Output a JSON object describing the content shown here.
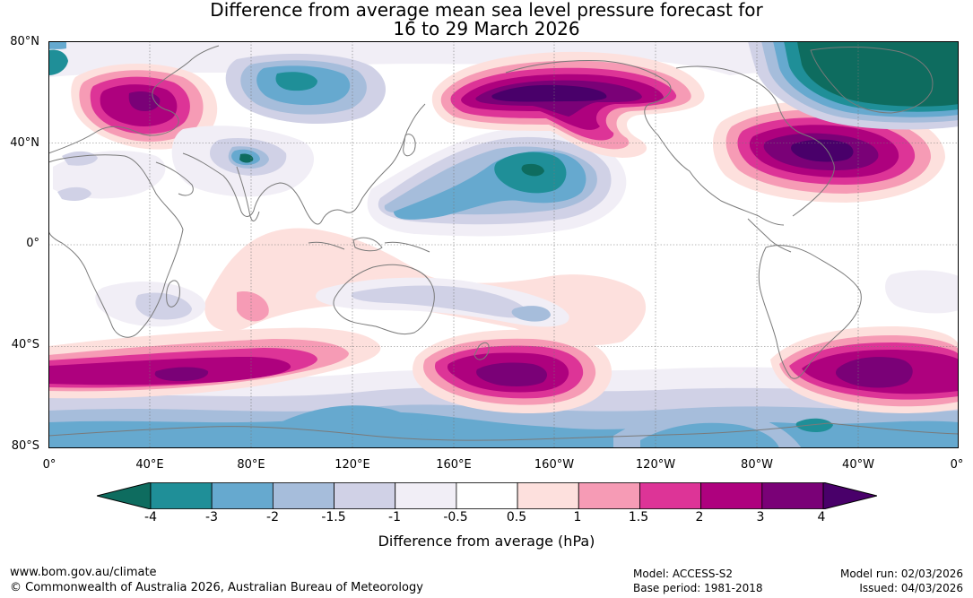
{
  "title_line1": "Difference from average mean sea level pressure forecast for",
  "title_line2": "16 to 29 March 2026",
  "lat_labels": [
    "80°N",
    "40°N",
    "0°",
    "40°S",
    "80°S"
  ],
  "lon_labels": [
    "0°",
    "40°E",
    "80°E",
    "120°E",
    "160°E",
    "160°W",
    "120°W",
    "80°W",
    "40°W",
    "0°"
  ],
  "colorbar": {
    "title": "Difference from average (hPa)",
    "tick_labels": [
      "-4",
      "-3",
      "-2",
      "-1.5",
      "-1",
      "-0.5",
      "0.5",
      "1",
      "1.5",
      "2",
      "3",
      "4"
    ],
    "colors": [
      "#0e6c5f",
      "#1f8f98",
      "#66a9cf",
      "#a6bddb",
      "#d0d1e6",
      "#f1eef6",
      "#ffffff",
      "#fde0dd",
      "#f69bb5",
      "#dd3497",
      "#ae017e",
      "#7a0177",
      "#49006a"
    ]
  },
  "footer": {
    "website": "www.bom.gov.au/climate",
    "copyright": "© Commonwealth of Australia 2026, Australian Bureau of Meteorology",
    "model": "Model: ACCESS-S2",
    "base_period": "Base period: 1981-2018",
    "model_run": "Model run: 02/03/2026",
    "issued": "Issued: 04/03/2026"
  }
}
